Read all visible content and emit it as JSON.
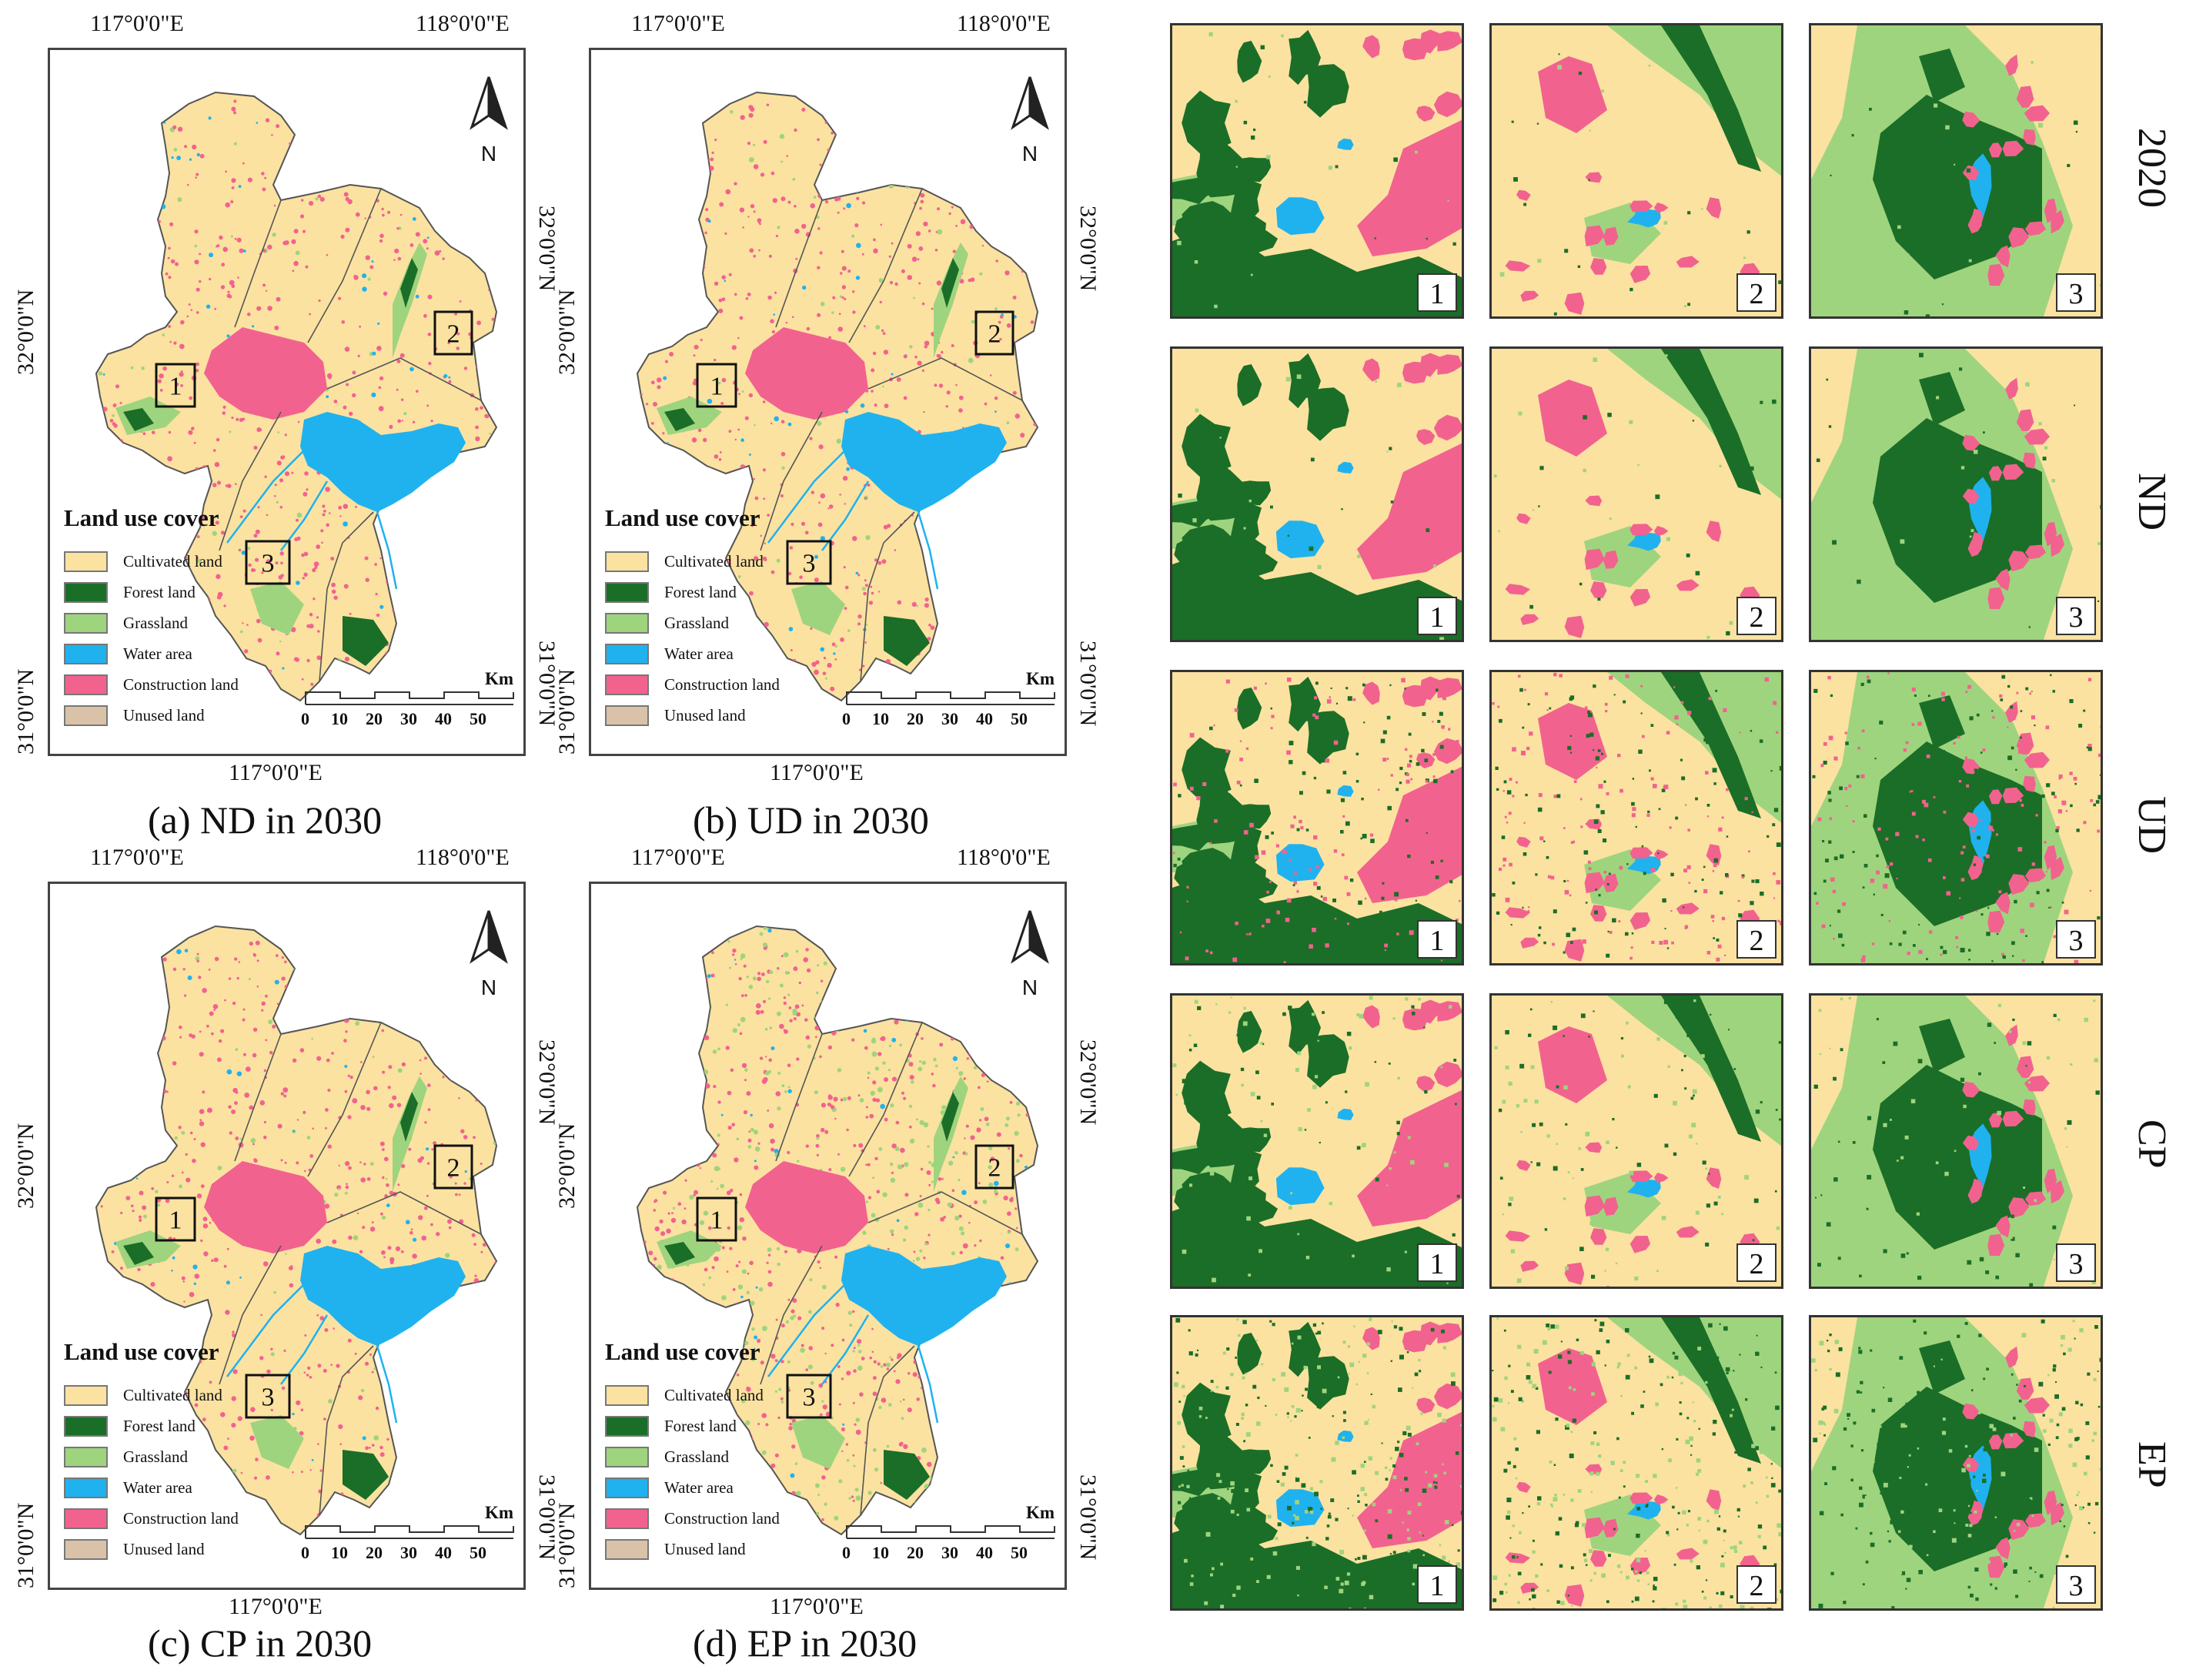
{
  "colors": {
    "cultivated": "#fbe2a1",
    "forest": "#1b6e27",
    "grassland": "#9fd47e",
    "water": "#1fb2ef",
    "construction": "#f2628f",
    "unused": "#d9c2a8"
  },
  "maps": [
    {
      "id": "a",
      "caption": "(a) ND in 2030",
      "lon_top_left": "117°0'0\"E",
      "lon_top_right": "118°0'0\"E",
      "lon_bottom": "117°0'0\"E",
      "lat_left_upper": "32°0'0\"N",
      "lat_left_lower": "31°0'0\"N",
      "lat_right_upper": "32°0'0\"N",
      "lat_right_lower": "31°0'0\"N",
      "north": "N",
      "box_labels": [
        "1",
        "2",
        "3"
      ]
    },
    {
      "id": "b",
      "caption": "(b) UD in 2030",
      "lon_top_left": "117°0'0\"E",
      "lon_top_right": "118°0'0\"E",
      "lon_bottom": "117°0'0\"E",
      "lat_left_upper": "32°0'0\"N",
      "lat_left_lower": "31°0'0\"N",
      "lat_right_upper": "32°0'0\"N",
      "lat_right_lower": "31°0'0\"N",
      "north": "N",
      "box_labels": [
        "1",
        "2",
        "3"
      ]
    },
    {
      "id": "c",
      "caption": "(c) CP in 2030",
      "lon_top_left": "117°0'0\"E",
      "lon_top_right": "118°0'0\"E",
      "lon_bottom": "117°0'0\"E",
      "lat_left_upper": "32°0'0\"N",
      "lat_left_lower": "31°0'0\"N",
      "lat_right_upper": "32°0'0\"N",
      "lat_right_lower": "31°0'0\"N",
      "north": "N",
      "box_labels": [
        "1",
        "2",
        "3"
      ]
    },
    {
      "id": "d",
      "caption": "(d) EP in 2030",
      "lon_top_left": "117°0'0\"E",
      "lon_top_right": "118°0'0\"E",
      "lon_bottom": "117°0'0\"E",
      "lat_left_upper": "32°0'0\"N",
      "lat_left_lower": "31°0'0\"N",
      "lat_right_upper": "32°0'0\"N",
      "lat_right_lower": "31°0'0\"N",
      "north": "N",
      "box_labels": [
        "1",
        "2",
        "3"
      ]
    }
  ],
  "legend": {
    "title": "Land use cover",
    "items": [
      "Cultivated land",
      "Forest land",
      "Grassland",
      "Water area",
      "Construction land",
      "Unused land"
    ]
  },
  "scale": {
    "ticks": [
      "0",
      "10",
      "20",
      "30",
      "40",
      "50"
    ],
    "unit": "Km"
  },
  "panels": {
    "rows": [
      "2020",
      "ND",
      "UD",
      "CP",
      "EP"
    ],
    "columns": [
      "1",
      "2",
      "3"
    ]
  }
}
